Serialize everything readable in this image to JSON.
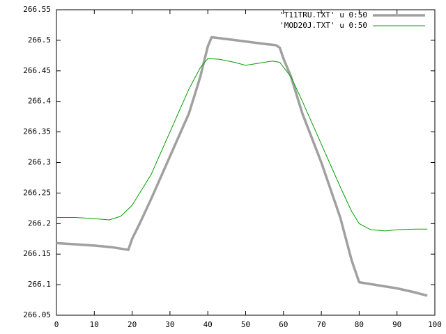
{
  "chart_data": {
    "type": "line",
    "series": [
      {
        "name": "'T11TRU.TXT' u 0:50",
        "color": "#a0a0a0",
        "x": [
          0,
          5,
          10,
          15,
          18,
          19,
          20,
          22,
          25,
          30,
          35,
          38,
          40,
          41,
          45,
          50,
          55,
          58,
          59,
          60,
          62,
          65,
          70,
          75,
          78,
          80,
          85,
          90,
          95,
          98
        ],
        "values": [
          266.168,
          266.166,
          266.164,
          266.161,
          266.158,
          266.157,
          266.175,
          266.2,
          266.24,
          266.31,
          266.38,
          266.44,
          266.49,
          266.505,
          266.502,
          266.498,
          266.494,
          266.492,
          266.488,
          266.47,
          266.44,
          266.38,
          266.3,
          266.21,
          266.14,
          266.104,
          266.099,
          266.094,
          266.087,
          266.082
        ]
      },
      {
        "name": "'MOD20J.TXT' u 0:50",
        "color": "#00a000",
        "x": [
          0,
          5,
          10,
          14,
          17,
          20,
          25,
          30,
          35,
          38,
          40,
          43,
          47,
          50,
          53,
          57,
          59,
          62,
          65,
          70,
          75,
          78,
          80,
          83,
          87,
          90,
          95,
          98
        ],
        "values": [
          266.21,
          266.21,
          266.208,
          266.206,
          266.212,
          266.23,
          266.28,
          266.35,
          266.42,
          266.455,
          266.47,
          266.469,
          266.464,
          266.459,
          266.462,
          266.466,
          266.464,
          266.44,
          266.4,
          266.33,
          266.26,
          266.22,
          266.2,
          266.19,
          266.188,
          266.19,
          266.191,
          266.191
        ]
      }
    ],
    "xlim": [
      0,
      100
    ],
    "xticks": [
      0,
      10,
      20,
      30,
      40,
      50,
      60,
      70,
      80,
      90,
      100
    ],
    "ylim": [
      266.05,
      266.55
    ],
    "yticks": [
      266.05,
      266.1,
      266.15,
      266.2,
      266.25,
      266.3,
      266.35,
      266.4,
      266.45,
      266.5,
      266.55
    ],
    "legend": "top-right"
  }
}
